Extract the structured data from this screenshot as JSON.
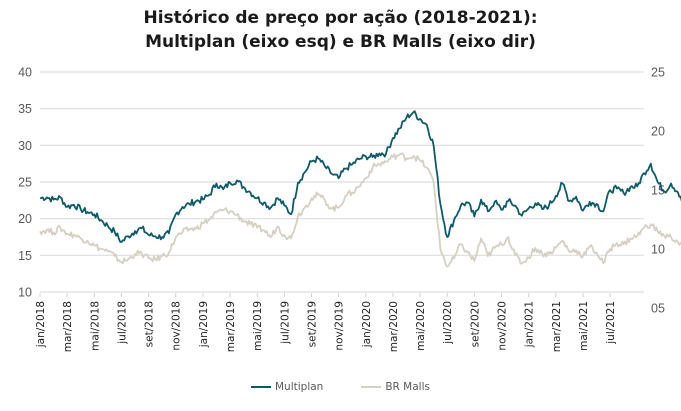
{
  "chart_data": {
    "type": "line",
    "title_line1": "Histórico de preço por ação (2018-2021):",
    "title_line2": "Multiplan (eixo esq) e BR Malls (eixo dir)",
    "xlabel": "",
    "ylabel_left": "",
    "ylabel_right": "",
    "grid": true,
    "legend_position": "bottom",
    "y_left": {
      "range": [
        10,
        40
      ],
      "ticks": [
        "10",
        "15",
        "20",
        "25",
        "30",
        "35",
        "40"
      ],
      "tick_values": [
        10,
        15,
        20,
        25,
        30,
        35,
        40
      ]
    },
    "y_right": {
      "range": [
        5,
        25
      ],
      "ticks": [
        "05",
        "10",
        "15",
        "20",
        "25"
      ],
      "tick_values": [
        5,
        10,
        15,
        20,
        25
      ]
    },
    "x_range_months": [
      0,
      44.5
    ],
    "x_ticks": [
      {
        "label": "jan/2018",
        "month": 0
      },
      {
        "label": "mar/2018",
        "month": 2
      },
      {
        "label": "mai/2018",
        "month": 4
      },
      {
        "label": "jul/2018",
        "month": 6
      },
      {
        "label": "set/2018",
        "month": 8
      },
      {
        "label": "nov/2018",
        "month": 10
      },
      {
        "label": "jan/2019",
        "month": 12
      },
      {
        "label": "mar/2019",
        "month": 14
      },
      {
        "label": "mai/2019",
        "month": 16
      },
      {
        "label": "jul/2019",
        "month": 18
      },
      {
        "label": "set/2019",
        "month": 20
      },
      {
        "label": "nov/2019",
        "month": 22
      },
      {
        "label": "jan/2020",
        "month": 24
      },
      {
        "label": "mar/2020",
        "month": 26
      },
      {
        "label": "mai/2020",
        "month": 28
      },
      {
        "label": "jul/2020",
        "month": 30
      },
      {
        "label": "set/2020",
        "month": 32
      },
      {
        "label": "nov/2020",
        "month": 34
      },
      {
        "label": "jan/2021",
        "month": 36
      },
      {
        "label": "mar/2021",
        "month": 38
      },
      {
        "label": "mai/2021",
        "month": 40
      },
      {
        "label": "jul/2021",
        "month": 42
      }
    ],
    "series": [
      {
        "name": "Multiplan",
        "axis": "left",
        "color": "#0e5a68",
        "step_months": 0.5,
        "values": [
          22.8,
          22.9,
          22.6,
          22.9,
          21.6,
          21.9,
          21.3,
          20.9,
          20.6,
          19.8,
          19.0,
          18.2,
          16.8,
          17.6,
          18.3,
          18.7,
          17.8,
          17.6,
          17.5,
          18.0,
          20.6,
          21.6,
          22.0,
          22.4,
          22.6,
          23.3,
          24.8,
          24.0,
          24.9,
          25.2,
          24.3,
          23.6,
          22.8,
          22.2,
          21.5,
          22.8,
          21.8,
          20.6,
          24.9,
          26.3,
          27.8,
          28.2,
          27.1,
          26.1,
          25.5,
          26.8,
          27.4,
          28.1,
          28.5,
          28.4,
          28.9,
          28.9,
          31.0,
          32.3,
          33.8,
          34.5,
          33.6,
          32.8,
          30.0,
          22.0,
          17.5,
          19.8,
          21.8,
          22.2,
          20.3,
          22.6,
          21.0,
          22.3,
          21.2,
          22.4,
          21.8,
          20.4,
          21.4,
          22.1,
          21.3,
          21.8,
          23.1,
          24.8,
          22.4,
          23.0,
          21.1,
          22.3,
          22.0,
          21.0,
          23.9,
          24.1,
          23.5,
          24.3,
          24.4,
          26.2,
          27.5,
          25.0,
          23.7,
          24.8,
          23.6,
          21.4
        ]
      },
      {
        "name": "BR Malls",
        "axis": "right",
        "color": "#d5d0c3",
        "step_months": 0.5,
        "values": [
          11.5,
          11.6,
          11.4,
          11.8,
          11.3,
          11.2,
          10.9,
          10.7,
          10.3,
          10.0,
          9.8,
          9.4,
          8.9,
          9.1,
          9.6,
          9.6,
          9.2,
          9.1,
          9.4,
          9.7,
          11.0,
          11.4,
          11.7,
          11.7,
          12.2,
          12.5,
          13.1,
          13.3,
          13.2,
          12.9,
          12.4,
          12.1,
          11.8,
          11.6,
          11.0,
          11.9,
          11.2,
          10.9,
          12.8,
          13.5,
          14.3,
          14.6,
          14.1,
          13.4,
          13.5,
          14.5,
          14.8,
          15.3,
          16.0,
          16.9,
          17.2,
          17.4,
          17.8,
          18.0,
          17.7,
          17.9,
          17.5,
          16.9,
          15.7,
          10.0,
          8.5,
          9.2,
          10.4,
          9.7,
          9.0,
          10.9,
          9.4,
          10.1,
          10.4,
          11.0,
          9.5,
          8.8,
          9.3,
          10.1,
          9.6,
          9.6,
          10.1,
          10.7,
          9.8,
          9.9,
          9.4,
          10.2,
          9.7,
          8.8,
          10.0,
          10.5,
          10.4,
          10.9,
          11.1,
          11.8,
          12.1,
          11.5,
          11.1,
          11.0,
          10.6,
          10.2
        ]
      }
    ],
    "legend": [
      {
        "label": "Multiplan",
        "color": "#0e5a68"
      },
      {
        "label": "BR Malls",
        "color": "#d5d0c3"
      }
    ]
  }
}
